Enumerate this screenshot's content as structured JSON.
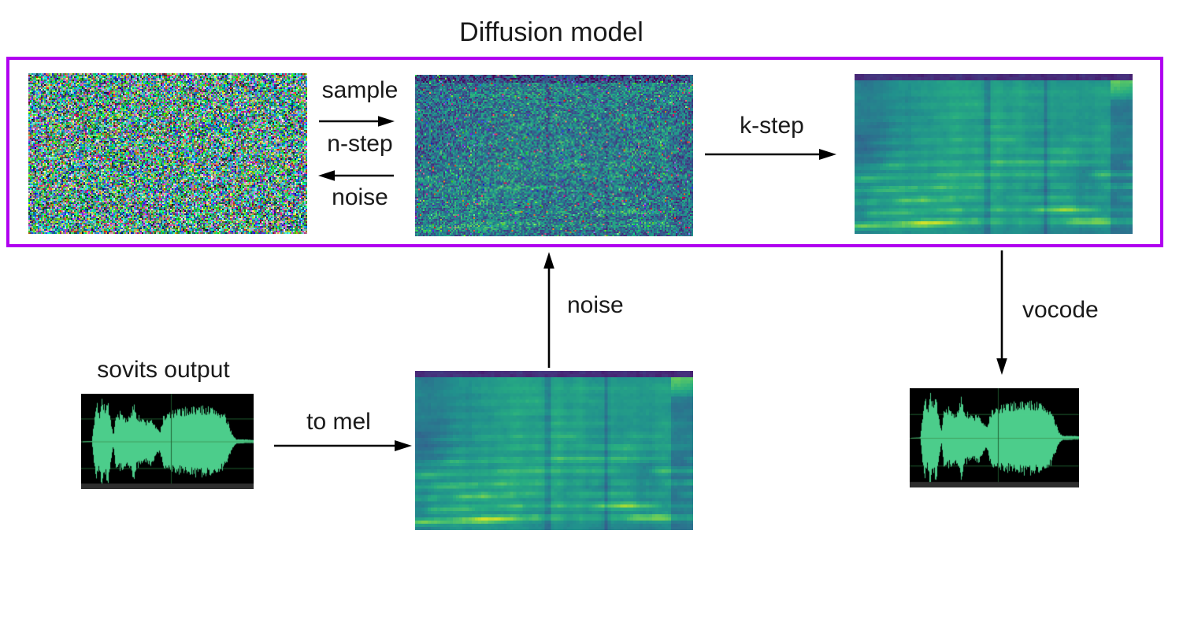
{
  "title": "Diffusion model",
  "labels": {
    "sample": "sample",
    "n_step": "n-step",
    "noise_reverse": "noise",
    "k_step": "k-step",
    "noise_up": "noise",
    "vocode": "vocode",
    "sovits_output": "sovits output",
    "to_mel": "to mel"
  },
  "images": {
    "gaussian_noise": "gaussian-noise",
    "noisy_mel": "noisy-mel-spectrogram",
    "denoised_mel": "denoised-mel-spectrogram",
    "sovits_waveform": "sovits-output-waveform",
    "mel_spectrogram": "mel-spectrogram",
    "vocoded_waveform": "vocoded-output-waveform"
  },
  "colors": {
    "box_border": "#b000f0",
    "arrow": "#000000",
    "text": "#1a1a1a",
    "waveform": "#4fd591",
    "waveform_bg": "#000000",
    "waveform_grid": "#1e5a2e",
    "waveform_grid_bright": "#3f9150",
    "waveform_scrollbar": "#2e2e2e"
  }
}
